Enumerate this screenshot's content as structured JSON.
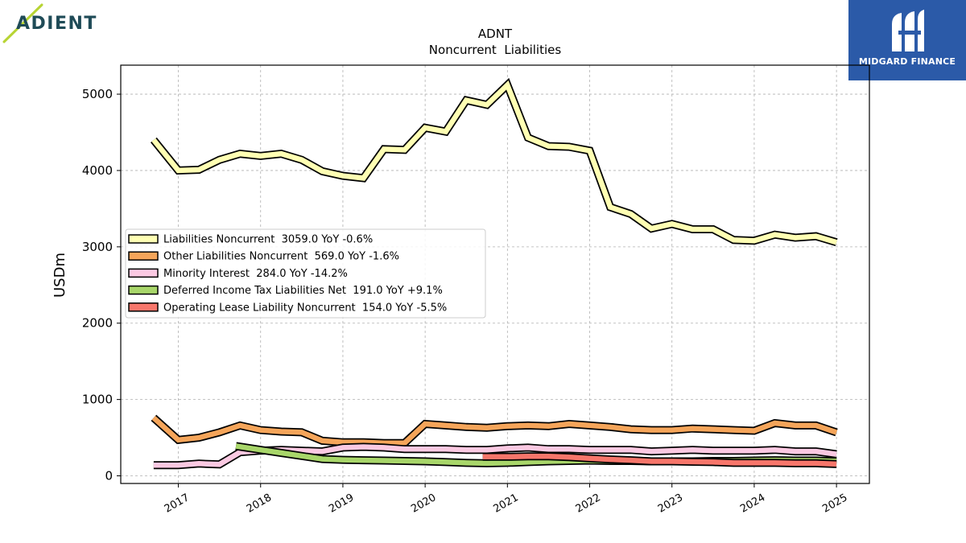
{
  "brand": {
    "name": "ADIENT"
  },
  "sponsor": {
    "name": "MIDGARD FINANCE"
  },
  "chart_data": {
    "type": "line",
    "title": "ADNT",
    "subtitle": "Noncurrent  Liabilities",
    "ylabel": "USDm",
    "xlabel": "",
    "ylim": [
      -100,
      5380
    ],
    "xlim": [
      2016.3,
      2025.4
    ],
    "yticks": [
      0,
      1000,
      2000,
      3000,
      4000,
      5000
    ],
    "xticks": [
      2017,
      2018,
      2019,
      2020,
      2021,
      2022,
      2023,
      2024,
      2025
    ],
    "grid": true,
    "legend_position": "center-left",
    "series": [
      {
        "name": "Liabilities Noncurrent",
        "legend": "Liabilities Noncurrent  3059.0 YoY -0.6%",
        "color": "#ffffb3",
        "x": [
          2016.7,
          2017.0,
          2017.25,
          2017.5,
          2017.75,
          2018.0,
          2018.25,
          2018.5,
          2018.75,
          2019.0,
          2019.25,
          2019.5,
          2019.75,
          2020.0,
          2020.25,
          2020.5,
          2020.75,
          2021.0,
          2021.25,
          2021.5,
          2021.75,
          2022.0,
          2022.25,
          2022.5,
          2022.75,
          2023.0,
          2023.25,
          2023.5,
          2023.75,
          2024.0,
          2024.25,
          2024.5,
          2024.75,
          2025.0
        ],
        "values": [
          4400,
          4000,
          4010,
          4140,
          4220,
          4190,
          4220,
          4140,
          3990,
          3930,
          3900,
          4280,
          4270,
          4560,
          4510,
          4920,
          4860,
          5120,
          4430,
          4320,
          4310,
          4260,
          3520,
          3430,
          3240,
          3300,
          3230,
          3230,
          3090,
          3080,
          3160,
          3120,
          3140,
          3059
        ]
      },
      {
        "name": "Other Liabilities Noncurrent",
        "legend": "Other Liabilities Noncurrent  569.0 YoY -1.6%",
        "color": "#f5a55a",
        "x": [
          2016.7,
          2017.0,
          2017.25,
          2017.5,
          2017.75,
          2018.0,
          2018.25,
          2018.5,
          2018.75,
          2019.0,
          2019.25,
          2019.5,
          2019.75,
          2020.0,
          2020.25,
          2020.5,
          2020.75,
          2021.0,
          2021.25,
          2021.5,
          2021.75,
          2022.0,
          2022.25,
          2022.5,
          2022.75,
          2023.0,
          2023.25,
          2023.5,
          2023.75,
          2024.0,
          2024.25,
          2024.5,
          2024.75,
          2025.0
        ],
        "values": [
          760,
          470,
          500,
          570,
          660,
          600,
          580,
          570,
          460,
          440,
          440,
          430,
          430,
          680,
          660,
          640,
          630,
          650,
          660,
          650,
          680,
          660,
          640,
          610,
          600,
          600,
          620,
          610,
          600,
          590,
          690,
          660,
          660,
          569
        ]
      },
      {
        "name": "Minority Interest",
        "legend": "Minority Interest  284.0 YoY -14.2%",
        "color": "#fbc9e2",
        "x": [
          2016.7,
          2017.0,
          2017.25,
          2017.5,
          2017.75,
          2018.0,
          2018.25,
          2018.5,
          2018.75,
          2019.0,
          2019.25,
          2019.5,
          2019.75,
          2020.0,
          2020.25,
          2020.5,
          2020.75,
          2021.0,
          2021.25,
          2021.5,
          2021.75,
          2022.0,
          2022.25,
          2022.5,
          2022.75,
          2023.0,
          2023.25,
          2023.5,
          2023.75,
          2024.0,
          2024.25,
          2024.5,
          2024.75,
          2025.0
        ],
        "values": [
          140,
          140,
          160,
          150,
          310,
          330,
          340,
          330,
          320,
          370,
          380,
          370,
          350,
          350,
          350,
          340,
          340,
          360,
          370,
          350,
          350,
          340,
          340,
          340,
          320,
          330,
          340,
          330,
          330,
          330,
          340,
          320,
          320,
          284
        ]
      },
      {
        "name": "Deferred Income Tax Liabilities Net",
        "legend": "Deferred Income Tax Liabilities Net  191.0 YoY +9.1%",
        "color": "#a8d66a",
        "x": [
          2017.7,
          2018.0,
          2018.25,
          2018.5,
          2018.75,
          2019.0,
          2019.25,
          2019.5,
          2019.75,
          2020.0,
          2020.25,
          2020.5,
          2020.75,
          2021.0,
          2021.25,
          2021.5,
          2021.75,
          2022.0,
          2022.25,
          2022.5,
          2022.75,
          2023.0,
          2023.25,
          2023.5,
          2023.75,
          2024.0,
          2024.25,
          2024.5,
          2024.75,
          2025.0
        ],
        "values": [
          390,
          340,
          300,
          260,
          220,
          210,
          205,
          200,
          195,
          190,
          180,
          170,
          165,
          170,
          180,
          190,
          195,
          200,
          195,
          195,
          190,
          190,
          190,
          195,
          195,
          200,
          205,
          200,
          200,
          191
        ]
      },
      {
        "name": "Operating Lease Liability Noncurrent",
        "legend": "Operating Lease Liability Noncurrent  154.0 YoY -5.5%",
        "color": "#f7766b",
        "x": [
          2020.7,
          2021.0,
          2021.25,
          2021.5,
          2021.75,
          2022.0,
          2022.25,
          2022.5,
          2022.75,
          2023.0,
          2023.25,
          2023.5,
          2023.75,
          2024.0,
          2024.25,
          2024.5,
          2024.75,
          2025.0
        ],
        "values": [
          250,
          250,
          255,
          255,
          245,
          230,
          215,
          205,
          190,
          190,
          185,
          180,
          170,
          170,
          170,
          165,
          165,
          154
        ]
      }
    ]
  }
}
